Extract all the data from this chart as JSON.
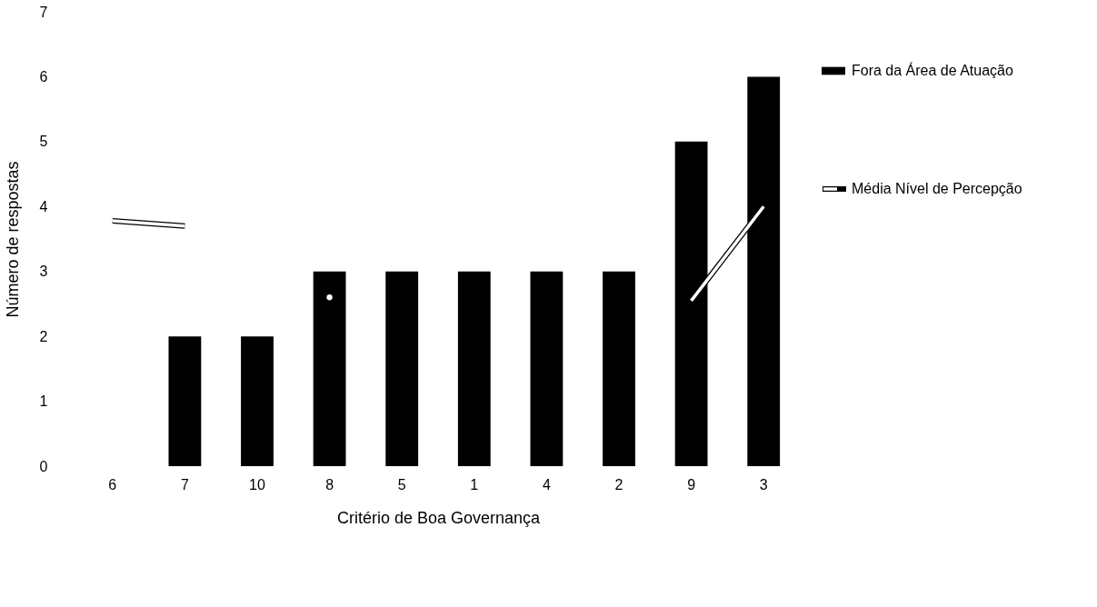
{
  "chart_data": {
    "type": "bar",
    "xlabel": "Critério de Boa Governança",
    "ylabel": "Número de respostas",
    "categories": [
      "6",
      "7",
      "10",
      "8",
      "5",
      "1",
      "4",
      "2",
      "9",
      "3"
    ],
    "series": [
      {
        "name": "Fora da Área de Atuação",
        "color": "#000000",
        "values": [
          0,
          2,
          2,
          3,
          3,
          3,
          3,
          3,
          5,
          6
        ]
      },
      {
        "name": "Média Nível de Percepção",
        "type": "line",
        "color": "#ffffff",
        "values": [
          3.78,
          3.7,
          null,
          2.6,
          null,
          null,
          null,
          null,
          2.55,
          4.0
        ]
      }
    ],
    "ylim": [
      0,
      7
    ],
    "yticks": [
      0,
      1,
      2,
      3,
      4,
      5,
      6,
      7
    ],
    "grid": false,
    "legend": "right",
    "marker": "none",
    "line_style": "solid"
  }
}
